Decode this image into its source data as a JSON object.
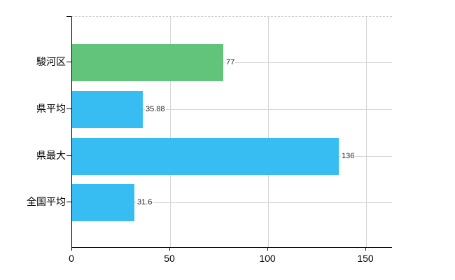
{
  "chart_data": {
    "type": "bar",
    "orientation": "horizontal",
    "title": "",
    "xlabel": "",
    "ylabel": "",
    "categories": [
      "駿河区",
      "県平均",
      "県最大",
      "全国平均"
    ],
    "values": [
      77,
      35.88,
      136,
      31.6
    ],
    "value_labels": [
      "77",
      "35.88",
      "136",
      "31.6"
    ],
    "bar_colors": [
      "#62c47a",
      "#38bdf2",
      "#38bdf2",
      "#38bdf2"
    ],
    "x_ticks": [
      0,
      50,
      100,
      150
    ],
    "x_tick_labels": [
      "0",
      "50",
      "100",
      "150"
    ],
    "xlim": [
      0,
      163.5
    ],
    "grid": true,
    "legend": "none"
  },
  "colors": {
    "green_bar": "#62c47a",
    "blue_bar": "#38bdf2",
    "gridline": "#d6d6d6",
    "dashed_border": "#cccccc",
    "axis": "#000000",
    "background": "#ffffff"
  }
}
